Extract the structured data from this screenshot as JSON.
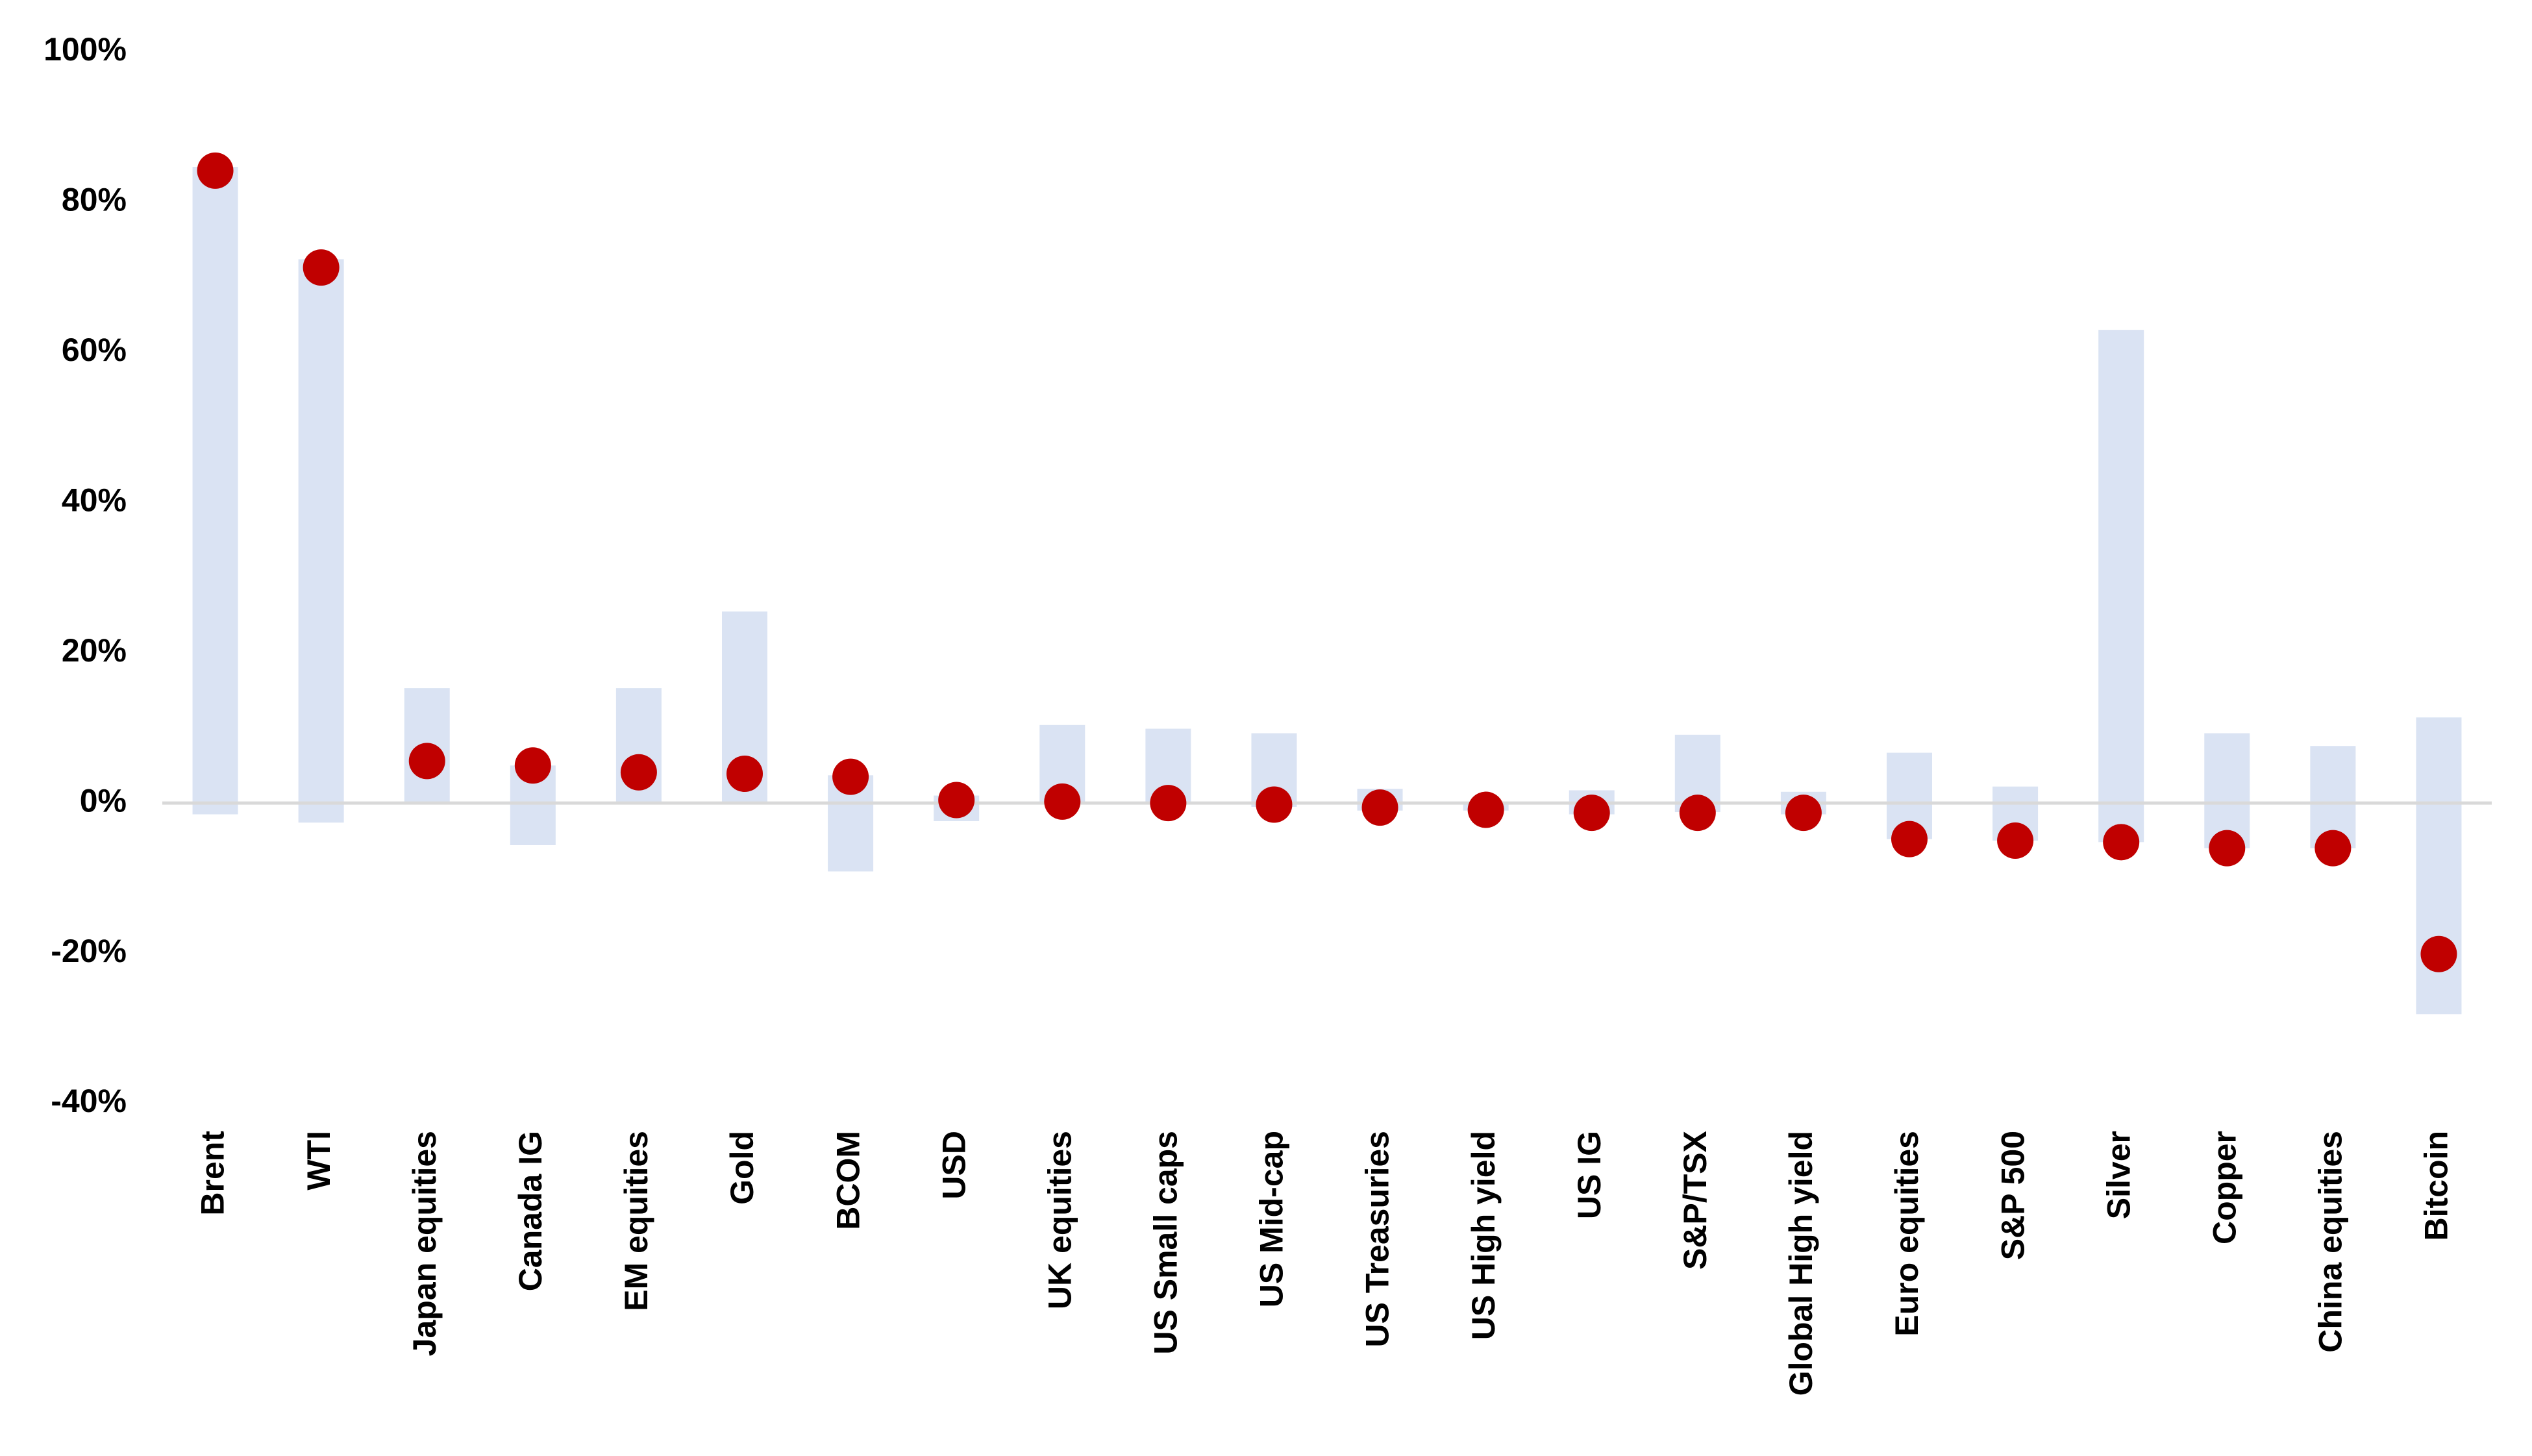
{
  "chart_data": {
    "type": "range_dot",
    "categories": [
      "Brent",
      "WTI",
      "Japan equities",
      "Canada IG",
      "EM equities",
      "Gold",
      "BCOM",
      "USD",
      "UK equities",
      "US Small caps",
      "US Mid-cap",
      "US Treasuries",
      "US High yield",
      "US IG",
      "S&P/TSX",
      "Global High yield",
      "Euro equities",
      "S&P 500",
      "Silver",
      "Copper",
      "China equities",
      "Bitcoin"
    ],
    "low": [
      -1.5,
      -2.6,
      0,
      -5.6,
      0,
      0,
      -9.1,
      -2.4,
      0,
      0,
      -0.5,
      -1,
      -1,
      -1.5,
      -1.2,
      -1.5,
      -4.8,
      -5,
      -5.2,
      -6,
      -6,
      -28.1
    ],
    "high": [
      84.7,
      72.4,
      15.3,
      5,
      15.3,
      25.5,
      3.7,
      1,
      10.4,
      9.9,
      9.3,
      1.9,
      0,
      1.7,
      9.1,
      1.5,
      6.7,
      2.2,
      63,
      9.3,
      7.6,
      11.4
    ],
    "values": [
      84.2,
      71.3,
      5.6,
      5.0,
      4.1,
      3.9,
      3.5,
      0.4,
      0.2,
      0,
      -0.2,
      -0.6,
      -0.9,
      -1.3,
      -1.3,
      -1.3,
      -4.8,
      -5.0,
      -5.2,
      -6.0,
      -6.0,
      -20.1
    ],
    "bar_color": "#dae3f3",
    "dot_color": "#c00000",
    "ylim": [
      -40,
      100
    ],
    "yticks": [
      {
        "value": -40,
        "label": "-40%"
      },
      {
        "value": -20,
        "label": "-20%"
      },
      {
        "value": 0,
        "label": "0%"
      },
      {
        "value": 20,
        "label": "20%"
      },
      {
        "value": 40,
        "label": "40%"
      },
      {
        "value": 60,
        "label": "60%"
      },
      {
        "value": 80,
        "label": "80%"
      },
      {
        "value": 100,
        "label": "100%"
      }
    ],
    "grid": false
  }
}
